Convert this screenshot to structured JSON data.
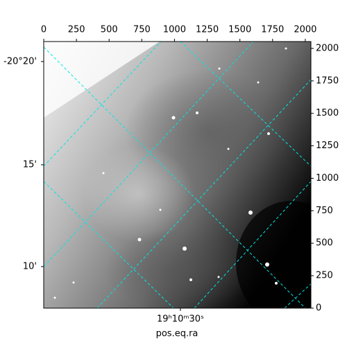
{
  "chart_data": {
    "type": "image",
    "xlabel": "pos.eq.ra",
    "xlim": [
      0,
      2043
    ],
    "ylim": [
      0,
      2053
    ],
    "top_xticks": [
      0,
      250,
      500,
      750,
      1000,
      1250,
      1500,
      1750,
      2000
    ],
    "right_yticks": [
      0,
      250,
      500,
      750,
      1000,
      1250,
      1500,
      1750,
      2000
    ],
    "left_yticks": [
      {
        "value": 1899,
        "label": "-20°20'"
      },
      {
        "value": 1104,
        "label": "15'"
      },
      {
        "value": 320,
        "label": "10'"
      }
    ],
    "bottom_xticks": [
      {
        "value": 1045,
        "label": "19ʰ10ᵐ30ˢ"
      }
    ]
  }
}
